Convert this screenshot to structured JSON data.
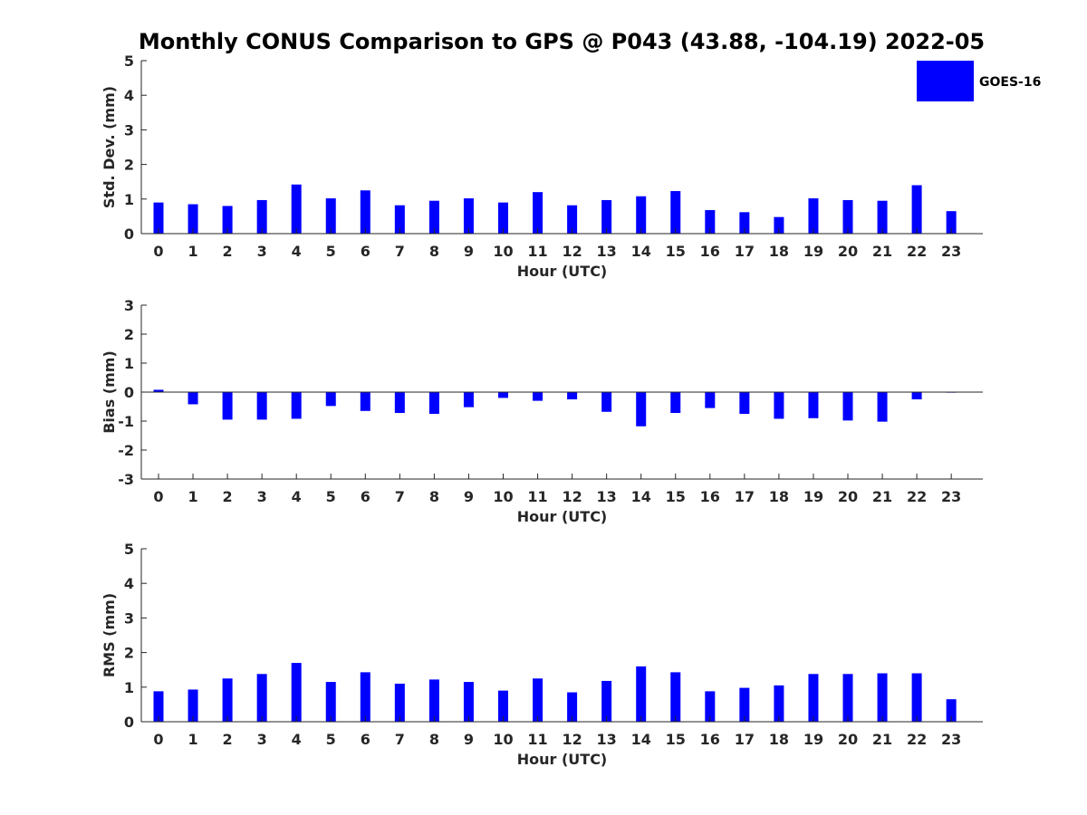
{
  "title": "Monthly CONUS Comparison to GPS @ P043 (43.88, -104.19) 2022-05",
  "legend": {
    "label": "GOES-16",
    "color": "#0000ff",
    "placement": "top-right"
  },
  "chart_data": [
    {
      "type": "bar",
      "xlabel": "Hour (UTC)",
      "ylabel": "Std. Dev. (mm)",
      "ylim": [
        0,
        5
      ],
      "yticks": [
        0,
        1,
        2,
        3,
        4,
        5
      ],
      "grid": false,
      "categories": [
        "0",
        "1",
        "2",
        "3",
        "4",
        "5",
        "6",
        "7",
        "8",
        "9",
        "10",
        "11",
        "12",
        "13",
        "14",
        "15",
        "16",
        "17",
        "18",
        "19",
        "20",
        "21",
        "22",
        "23"
      ],
      "series": [
        {
          "name": "GOES-16",
          "values": [
            0.9,
            0.85,
            0.8,
            0.97,
            1.42,
            1.02,
            1.25,
            0.82,
            0.95,
            1.02,
            0.9,
            1.2,
            0.82,
            0.97,
            1.08,
            1.23,
            0.68,
            0.62,
            0.48,
            1.02,
            0.97,
            0.95,
            1.4,
            0.65
          ]
        }
      ]
    },
    {
      "type": "bar",
      "xlabel": "Hour (UTC)",
      "ylabel": "Bias (mm)",
      "ylim": [
        -3,
        3
      ],
      "yticks": [
        -3,
        -2,
        -1,
        0,
        1,
        2,
        3
      ],
      "grid": false,
      "categories": [
        "0",
        "1",
        "2",
        "3",
        "4",
        "5",
        "6",
        "7",
        "8",
        "9",
        "10",
        "11",
        "12",
        "13",
        "14",
        "15",
        "16",
        "17",
        "18",
        "19",
        "20",
        "21",
        "22",
        "23"
      ],
      "series": [
        {
          "name": "GOES-16",
          "values": [
            0.08,
            -0.42,
            -0.95,
            -0.95,
            -0.92,
            -0.48,
            -0.65,
            -0.72,
            -0.75,
            -0.52,
            -0.2,
            -0.3,
            -0.25,
            -0.68,
            -1.18,
            -0.72,
            -0.55,
            -0.75,
            -0.92,
            -0.9,
            -0.98,
            -1.02,
            -0.25,
            -0.02
          ]
        }
      ]
    },
    {
      "type": "bar",
      "xlabel": "Hour (UTC)",
      "ylabel": "RMS (mm)",
      "ylim": [
        0,
        5
      ],
      "yticks": [
        0,
        1,
        2,
        3,
        4,
        5
      ],
      "grid": false,
      "categories": [
        "0",
        "1",
        "2",
        "3",
        "4",
        "5",
        "6",
        "7",
        "8",
        "9",
        "10",
        "11",
        "12",
        "13",
        "14",
        "15",
        "16",
        "17",
        "18",
        "19",
        "20",
        "21",
        "22",
        "23"
      ],
      "series": [
        {
          "name": "GOES-16",
          "values": [
            0.88,
            0.93,
            1.25,
            1.38,
            1.7,
            1.15,
            1.43,
            1.1,
            1.22,
            1.15,
            0.9,
            1.25,
            0.85,
            1.18,
            1.6,
            1.43,
            0.88,
            0.98,
            1.05,
            1.38,
            1.38,
            1.4,
            1.4,
            0.65
          ]
        }
      ]
    }
  ]
}
